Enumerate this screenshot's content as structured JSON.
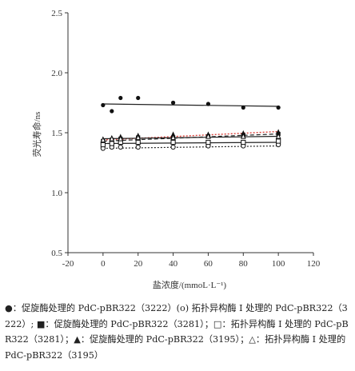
{
  "chart_data": {
    "type": "line",
    "xlabel": "盐浓度/(mmoL·L⁻¹)",
    "ylabel": "荧光寿命/ns",
    "xlim": [
      -20,
      120
    ],
    "ylim": [
      0.5,
      2.5
    ],
    "xticks": [
      "-20",
      "0",
      "20",
      "40",
      "60",
      "80",
      "100",
      "120"
    ],
    "xtick_values": [
      -20,
      0,
      20,
      40,
      60,
      80,
      100,
      120
    ],
    "yticks": [
      "0.5",
      "1.0",
      "1.5",
      "2.0",
      "2.5"
    ],
    "ytick_values": [
      0.5,
      1.0,
      1.5,
      2.0,
      2.5
    ],
    "grid": false,
    "series": [
      {
        "marker": "circle-filled",
        "color": "#111111",
        "line_style": "solid",
        "x": [
          0,
          5,
          10,
          20,
          40,
          60,
          80,
          100
        ],
        "y": [
          1.73,
          1.68,
          1.79,
          1.79,
          1.75,
          1.74,
          1.71,
          1.71
        ],
        "fit": [
          1.74,
          1.72
        ]
      },
      {
        "marker": "circle-open",
        "color": "#111111",
        "line_style": "dotted",
        "x": [
          0,
          5,
          10,
          20,
          40,
          60,
          80,
          100
        ],
        "y": [
          1.37,
          1.38,
          1.38,
          1.38,
          1.38,
          1.39,
          1.39,
          1.4
        ],
        "fit": [
          1.37,
          1.39
        ]
      },
      {
        "marker": "square-filled",
        "color": "#111111",
        "line_style": "dashed",
        "x": [
          0,
          5,
          10,
          20,
          40,
          60,
          80,
          100
        ],
        "y": [
          1.43,
          1.44,
          1.45,
          1.46,
          1.46,
          1.47,
          1.48,
          1.49
        ],
        "fit": [
          1.43,
          1.49
        ]
      },
      {
        "marker": "square-open",
        "color": "#111111",
        "line_style": "solid",
        "x": [
          0,
          5,
          10,
          20,
          40,
          60,
          80,
          100
        ],
        "y": [
          1.4,
          1.41,
          1.42,
          1.42,
          1.42,
          1.42,
          1.42,
          1.43
        ],
        "fit": [
          1.41,
          1.42
        ]
      },
      {
        "marker": "triangle-filled",
        "color": "#111111",
        "line_style": "dotted-red",
        "x": [
          0,
          5,
          10,
          20,
          40,
          60,
          80,
          100
        ],
        "y": [
          1.45,
          1.46,
          1.47,
          1.48,
          1.49,
          1.49,
          1.5,
          1.51
        ],
        "fit": [
          1.44,
          1.51
        ]
      },
      {
        "marker": "triangle-open",
        "color": "#111111",
        "line_style": "solid",
        "x": [
          0,
          5,
          10,
          20,
          40,
          60,
          80,
          100
        ],
        "y": [
          1.44,
          1.45,
          1.45,
          1.46,
          1.46,
          1.47,
          1.47,
          1.47
        ],
        "fit": [
          1.45,
          1.47
        ]
      }
    ],
    "accent_red": "#d9403a"
  },
  "legend": {
    "text": "●：促旋酶处理的 PdC-pBR322（3222）(ο) 拓扑异构酶 I 处理的 PdC-pBR322（3222）; ■：促旋酶处理的 PdC-pBR322（3281）；□：拓扑异构酶 I 处理的 PdC-pBR322（3281）；▲：促旋酶处理的 PdC-pBR322（3195）；△：拓扑异构酶 I 处理的 PdC-pBR322（3195）"
  }
}
